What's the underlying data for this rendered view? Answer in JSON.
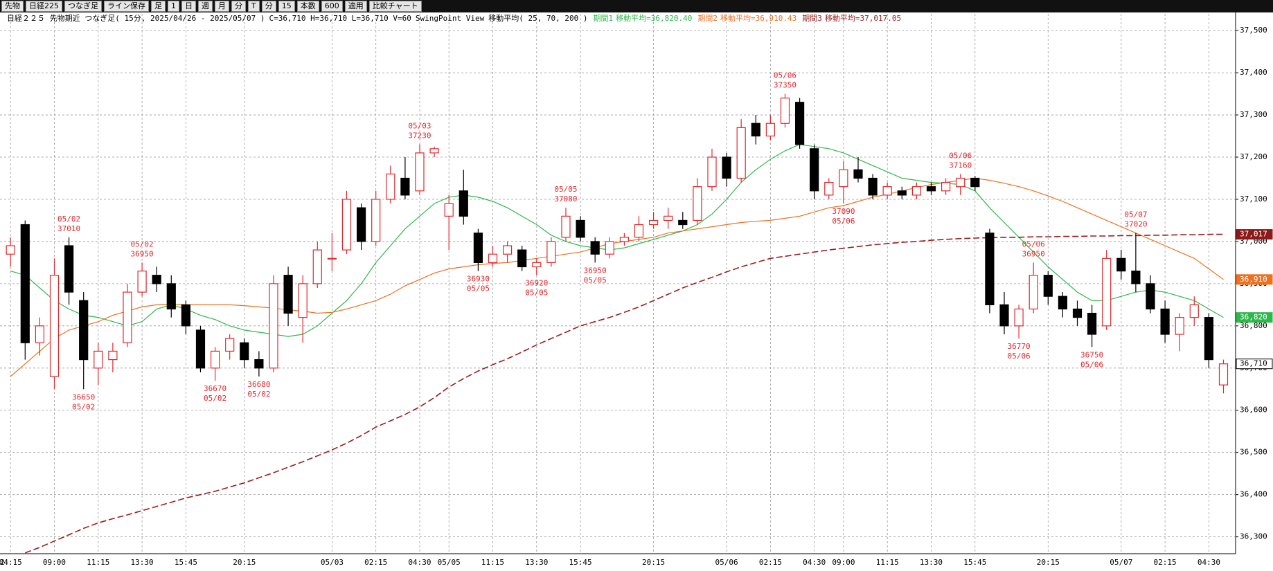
{
  "toolbar": {
    "items": [
      "先物",
      "日経225",
      "つなぎ足",
      "ライン保存",
      "足",
      "1",
      "日",
      "週",
      "月",
      "分",
      "T",
      "分",
      "15",
      "本数",
      "600",
      "適用",
      "比較チャート"
    ]
  },
  "chart_data": {
    "type": "candlestick",
    "header": {
      "prefix": "日経２２５ 先物期近 つなぎ足( 15分, 2025/04/26 - 2025/05/07 )",
      "ohlcv": "C=36,710 H=36,710 L=36,710 V=60",
      "view": "SwingPoint View",
      "ma": "移動平均( 25, 70, 200 )"
    },
    "edge_label": "02",
    "categories": [
      "04:15",
      null,
      null,
      "09:00",
      null,
      null,
      "11:15",
      null,
      null,
      "13:30",
      null,
      null,
      "15:45",
      null,
      null,
      null,
      "20:15",
      null,
      null,
      null,
      null,
      null,
      "05/03",
      null,
      null,
      "02:15",
      null,
      null,
      "04:30",
      null,
      "05/05",
      null,
      null,
      "11:15",
      null,
      null,
      "13:30",
      null,
      null,
      "15:45",
      null,
      null,
      null,
      null,
      "20:15",
      null,
      null,
      null,
      null,
      "05/06",
      null,
      null,
      "02:15",
      null,
      null,
      "04:30",
      null,
      "09:00",
      null,
      null,
      "11:15",
      null,
      null,
      "13:30",
      null,
      null,
      "15:45",
      null,
      null,
      null,
      null,
      "20:15",
      null,
      null,
      null,
      null,
      "05/07",
      null,
      null,
      "02:15",
      null,
      null,
      "04:30",
      null
    ],
    "ohlc": [
      [
        36970,
        37010,
        36940,
        36990
      ],
      [
        37040,
        37050,
        36720,
        36760
      ],
      [
        36760,
        36820,
        36730,
        36800
      ],
      [
        36680,
        36960,
        36650,
        36920
      ],
      [
        36990,
        37010,
        36850,
        36880
      ],
      [
        36860,
        36880,
        36650,
        36720
      ],
      [
        36700,
        36760,
        36660,
        36740
      ],
      [
        36720,
        36760,
        36690,
        36740
      ],
      [
        36760,
        36900,
        36750,
        36880
      ],
      [
        36880,
        36950,
        36870,
        36930
      ],
      [
        36920,
        36940,
        36880,
        36900
      ],
      [
        36900,
        36920,
        36820,
        36840
      ],
      [
        36850,
        36860,
        36780,
        36800
      ],
      [
        36790,
        36800,
        36690,
        36700
      ],
      [
        36700,
        36750,
        36670,
        36740
      ],
      [
        36740,
        36780,
        36720,
        36770
      ],
      [
        36760,
        36770,
        36700,
        36720
      ],
      [
        36720,
        36740,
        36680,
        36700
      ],
      [
        36700,
        36920,
        36690,
        36900
      ],
      [
        36920,
        36940,
        36800,
        36830
      ],
      [
        36820,
        36920,
        36760,
        36900
      ],
      [
        36900,
        37000,
        36890,
        36980
      ],
      [
        36960,
        37020,
        36930,
        36960
      ],
      [
        36980,
        37120,
        36970,
        37100
      ],
      [
        37080,
        37090,
        36980,
        37000
      ],
      [
        37000,
        37120,
        36990,
        37100
      ],
      [
        37100,
        37180,
        37090,
        37160
      ],
      [
        37150,
        37200,
        37100,
        37110
      ],
      [
        37120,
        37230,
        37110,
        37210
      ],
      [
        37210,
        37225,
        37200,
        37220
      ],
      [
        37060,
        37110,
        36980,
        37090
      ],
      [
        37120,
        37170,
        37040,
        37060
      ],
      [
        37020,
        37030,
        36930,
        36950
      ],
      [
        36950,
        36990,
        36940,
        36970
      ],
      [
        36970,
        37000,
        36950,
        36990
      ],
      [
        36980,
        36990,
        36930,
        36940
      ],
      [
        36940,
        36960,
        36920,
        36950
      ],
      [
        36950,
        37010,
        36940,
        37000
      ],
      [
        37010,
        37080,
        37000,
        37060
      ],
      [
        37050,
        37060,
        37000,
        37010
      ],
      [
        37000,
        37010,
        36950,
        36970
      ],
      [
        36970,
        37010,
        36960,
        37000
      ],
      [
        37000,
        37020,
        36990,
        37010
      ],
      [
        37010,
        37060,
        37000,
        37040
      ],
      [
        37040,
        37070,
        37030,
        37050
      ],
      [
        37050,
        37080,
        37030,
        37060
      ],
      [
        37050,
        37070,
        37030,
        37040
      ],
      [
        37050,
        37150,
        37040,
        37130
      ],
      [
        37130,
        37220,
        37120,
        37200
      ],
      [
        37200,
        37210,
        37130,
        37150
      ],
      [
        37150,
        37290,
        37140,
        37270
      ],
      [
        37280,
        37300,
        37230,
        37250
      ],
      [
        37250,
        37300,
        37240,
        37280
      ],
      [
        37280,
        37350,
        37270,
        37340
      ],
      [
        37330,
        37340,
        37220,
        37230
      ],
      [
        37220,
        37230,
        37100,
        37120
      ],
      [
        37110,
        37150,
        37100,
        37140
      ],
      [
        37130,
        37190,
        37090,
        37170
      ],
      [
        37170,
        37200,
        37140,
        37150
      ],
      [
        37150,
        37160,
        37100,
        37110
      ],
      [
        37110,
        37140,
        37100,
        37130
      ],
      [
        37120,
        37130,
        37100,
        37110
      ],
      [
        37110,
        37140,
        37100,
        37130
      ],
      [
        37130,
        37140,
        37110,
        37120
      ],
      [
        37120,
        37150,
        37110,
        37140
      ],
      [
        37130,
        37160,
        37110,
        37150
      ],
      [
        37150,
        37155,
        37120,
        37130
      ],
      [
        37020,
        37030,
        36830,
        36850
      ],
      [
        36850,
        36880,
        36780,
        36800
      ],
      [
        36800,
        36850,
        36770,
        36840
      ],
      [
        36840,
        36950,
        36830,
        36920
      ],
      [
        36920,
        36930,
        36850,
        36870
      ],
      [
        36870,
        36880,
        36820,
        36840
      ],
      [
        36840,
        36860,
        36800,
        36820
      ],
      [
        36830,
        36850,
        36750,
        36780
      ],
      [
        36800,
        36980,
        36790,
        36960
      ],
      [
        36960,
        36980,
        36910,
        36930
      ],
      [
        36930,
        37020,
        36880,
        36900
      ],
      [
        36900,
        36920,
        36830,
        36840
      ],
      [
        36840,
        36860,
        36760,
        36780
      ],
      [
        36780,
        36830,
        36740,
        36820
      ],
      [
        36820,
        36870,
        36800,
        36850
      ],
      [
        36820,
        36830,
        36700,
        36720
      ],
      [
        36660,
        36720,
        36640,
        36710
      ]
    ],
    "up_color": "#e8262a",
    "down_color": "#000000",
    "series": [
      {
        "name": "期間1",
        "legend_text": "移動平均=36,820.40",
        "color": "#2db84a",
        "dashed": false,
        "values": [
          36930,
          36920,
          36890,
          36860,
          36840,
          36825,
          36820,
          36810,
          36800,
          36810,
          36840,
          36850,
          36840,
          36825,
          36815,
          36800,
          36790,
          36785,
          36780,
          36775,
          36780,
          36800,
          36830,
          36860,
          36900,
          36950,
          36990,
          37030,
          37060,
          37090,
          37105,
          37110,
          37105,
          37095,
          37080,
          37060,
          37040,
          37015,
          37000,
          36990,
          36985,
          36980,
          36985,
          36995,
          37005,
          37015,
          37025,
          37040,
          37065,
          37100,
          37140,
          37170,
          37195,
          37215,
          37230,
          37225,
          37220,
          37210,
          37195,
          37180,
          37165,
          37150,
          37145,
          37140,
          37138,
          37135,
          37120,
          37080,
          37045,
          37010,
          36975,
          36940,
          36910,
          36880,
          36860,
          36860,
          36870,
          36880,
          36885,
          36880,
          36870,
          36860,
          36840,
          36820
        ]
      },
      {
        "name": "期間2",
        "legend_text": "移動平均=36,910.43",
        "color": "#f07020",
        "dashed": false,
        "values": [
          36680,
          36710,
          36740,
          36770,
          36790,
          36800,
          36810,
          36825,
          36835,
          36845,
          36850,
          36852,
          36850,
          36850,
          36850,
          36850,
          36848,
          36845,
          36842,
          36838,
          36835,
          36830,
          36832,
          36840,
          36850,
          36860,
          36875,
          36895,
          36910,
          36925,
          36935,
          36940,
          36945,
          36948,
          36950,
          36955,
          36960,
          36965,
          36970,
          36975,
          36985,
          36995,
          37000,
          37005,
          37010,
          37020,
          37025,
          37030,
          37035,
          37040,
          37045,
          37048,
          37050,
          37055,
          37060,
          37070,
          37080,
          37085,
          37095,
          37105,
          37112,
          37120,
          37128,
          37135,
          37140,
          37145,
          37150,
          37145,
          37138,
          37130,
          37120,
          37108,
          37095,
          37080,
          37065,
          37050,
          37035,
          37020,
          37005,
          36990,
          36975,
          36960,
          36935,
          36910
        ]
      },
      {
        "name": "期間3",
        "legend_text": "移動平均=37,017.05",
        "color": "#9b1c1c",
        "dashed": true,
        "values": [
          null,
          36262,
          36275,
          36290,
          36305,
          36320,
          36333,
          36343,
          36352,
          36362,
          36372,
          36382,
          36392,
          36400,
          36408,
          36418,
          36428,
          36440,
          36452,
          36465,
          36478,
          36492,
          36506,
          36522,
          36540,
          36560,
          36575,
          36590,
          36608,
          36630,
          36655,
          36675,
          36693,
          36708,
          36722,
          36738,
          36755,
          36770,
          36785,
          36800,
          36810,
          36820,
          36832,
          36845,
          36860,
          36875,
          36890,
          36903,
          36915,
          36928,
          36940,
          36950,
          36960,
          36965,
          36970,
          36975,
          36980,
          36984,
          36988,
          36992,
          36995,
          36998,
          37000,
          37003,
          37005,
          37007,
          37008,
          37009,
          37010,
          37010,
          37011,
          37011,
          37012,
          37012,
          37013,
          37013,
          37014,
          37014,
          37015,
          37015,
          37016,
          37016,
          37017,
          37017
        ]
      }
    ],
    "swings": [
      {
        "candle": 4,
        "kind": "high",
        "date": "05/02",
        "price": 37010
      },
      {
        "candle": 5,
        "kind": "low",
        "date": "05/02",
        "price": 36650
      },
      {
        "candle": 9,
        "kind": "high",
        "date": "05/02",
        "price": 36950
      },
      {
        "candle": 14,
        "kind": "low",
        "date": "05/02",
        "price": 36670
      },
      {
        "candle": 17,
        "kind": "low",
        "date": "05/02",
        "price": 36680
      },
      {
        "candle": 28,
        "kind": "high",
        "date": "05/03",
        "price": 37230
      },
      {
        "candle": 32,
        "kind": "low",
        "date": "05/05",
        "price": 36930
      },
      {
        "candle": 36,
        "kind": "low",
        "date": "05/05",
        "price": 36920
      },
      {
        "candle": 38,
        "kind": "high",
        "date": "05/05",
        "price": 37080
      },
      {
        "candle": 40,
        "kind": "low",
        "date": "05/05",
        "price": 36950
      },
      {
        "candle": 53,
        "kind": "high",
        "date": "05/06",
        "price": 37350
      },
      {
        "candle": 57,
        "kind": "low",
        "date": "05/06",
        "price": 37090
      },
      {
        "candle": 65,
        "kind": "high",
        "date": "05/06",
        "price": 37160
      },
      {
        "candle": 69,
        "kind": "low",
        "date": "05/06",
        "price": 36770
      },
      {
        "candle": 70,
        "kind": "high",
        "date": "05/06",
        "price": 36950
      },
      {
        "candle": 74,
        "kind": "low",
        "date": "05/06",
        "price": 36750
      },
      {
        "candle": 77,
        "kind": "high",
        "date": "05/07",
        "price": 37020
      }
    ],
    "swing_color": "#e8262a",
    "ylim": [
      36260,
      37515
    ],
    "yticks": [
      {
        "value": 36300,
        "label": "36,300"
      },
      {
        "value": 36400,
        "label": "36,400"
      },
      {
        "value": 36500,
        "label": "36,500"
      },
      {
        "value": 36600,
        "label": "36,600"
      },
      {
        "value": 36700,
        "label": "36,700"
      },
      {
        "value": 36800,
        "label": "36,800"
      },
      {
        "value": 36900,
        "label": "36,900"
      },
      {
        "value": 37000,
        "label": "37,000"
      },
      {
        "value": 37100,
        "label": "37,100"
      },
      {
        "value": 37200,
        "label": "37,200"
      },
      {
        "value": 37300,
        "label": "37,300"
      },
      {
        "value": 37400,
        "label": "37,400"
      },
      {
        "value": 37500,
        "label": "37,500"
      }
    ],
    "price_tags": [
      {
        "value": 37017,
        "label": "37,017",
        "color": "#8b1a1a"
      },
      {
        "value": 36910,
        "label": "36,910",
        "color": "#f07020"
      },
      {
        "value": 36820,
        "label": "36,820",
        "color": "#2db84a"
      },
      {
        "value": 36710,
        "label": "36,710",
        "color": "#ffffff"
      }
    ],
    "grid": true
  }
}
